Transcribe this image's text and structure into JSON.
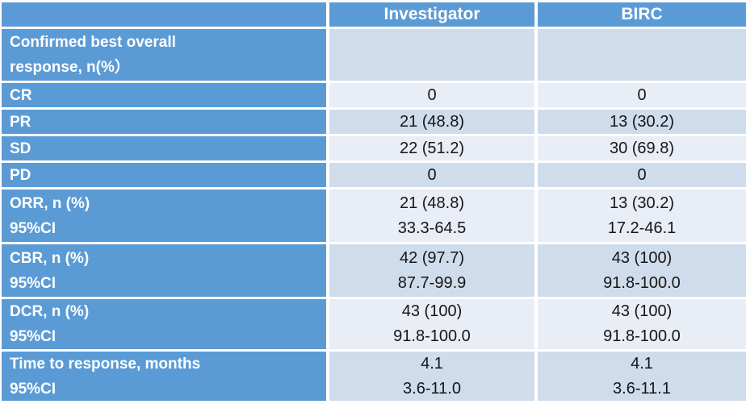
{
  "colors": {
    "header_blue": "#5B9BD5",
    "band_dark": "#CFDCEC",
    "band_light": "#E8EDF6",
    "grid_line": "#FFFFFF",
    "label_text": "#FFFFFF",
    "data_text": "#161616"
  },
  "chart_data": {
    "type": "table",
    "columns": [
      "",
      "Investigator",
      "BIRC"
    ],
    "rows": [
      {
        "label": [
          "Confirmed best overall",
          "response, n(%）"
        ],
        "investigator": [],
        "birc": []
      },
      {
        "label": [
          "CR"
        ],
        "investigator": [
          "0"
        ],
        "birc": [
          "0"
        ]
      },
      {
        "label": [
          "PR"
        ],
        "investigator": [
          "21 (48.8)"
        ],
        "birc": [
          "13 (30.2)"
        ]
      },
      {
        "label": [
          "SD"
        ],
        "investigator": [
          "22 (51.2)"
        ],
        "birc": [
          "30 (69.8)"
        ]
      },
      {
        "label": [
          "PD"
        ],
        "investigator": [
          "0"
        ],
        "birc": [
          "0"
        ]
      },
      {
        "label": [
          "ORR, n (%)",
          "95%CI"
        ],
        "investigator": [
          "21 (48.8)",
          "33.3-64.5"
        ],
        "birc": [
          "13 (30.2)",
          "17.2-46.1"
        ]
      },
      {
        "label": [
          "CBR, n (%)",
          "95%CI"
        ],
        "investigator": [
          "42 (97.7)",
          "87.7-99.9"
        ],
        "birc": [
          "43 (100)",
          "91.8-100.0"
        ]
      },
      {
        "label": [
          "DCR, n (%)",
          "95%CI"
        ],
        "investigator": [
          "43 (100)",
          "91.8-100.0"
        ],
        "birc": [
          "43 (100)",
          "91.8-100.0"
        ]
      },
      {
        "label": [
          "Time to response, months",
          "95%CI"
        ],
        "investigator": [
          "4.1",
          "3.6-11.0"
        ],
        "birc": [
          "4.1",
          "3.6-11.1"
        ]
      }
    ]
  }
}
